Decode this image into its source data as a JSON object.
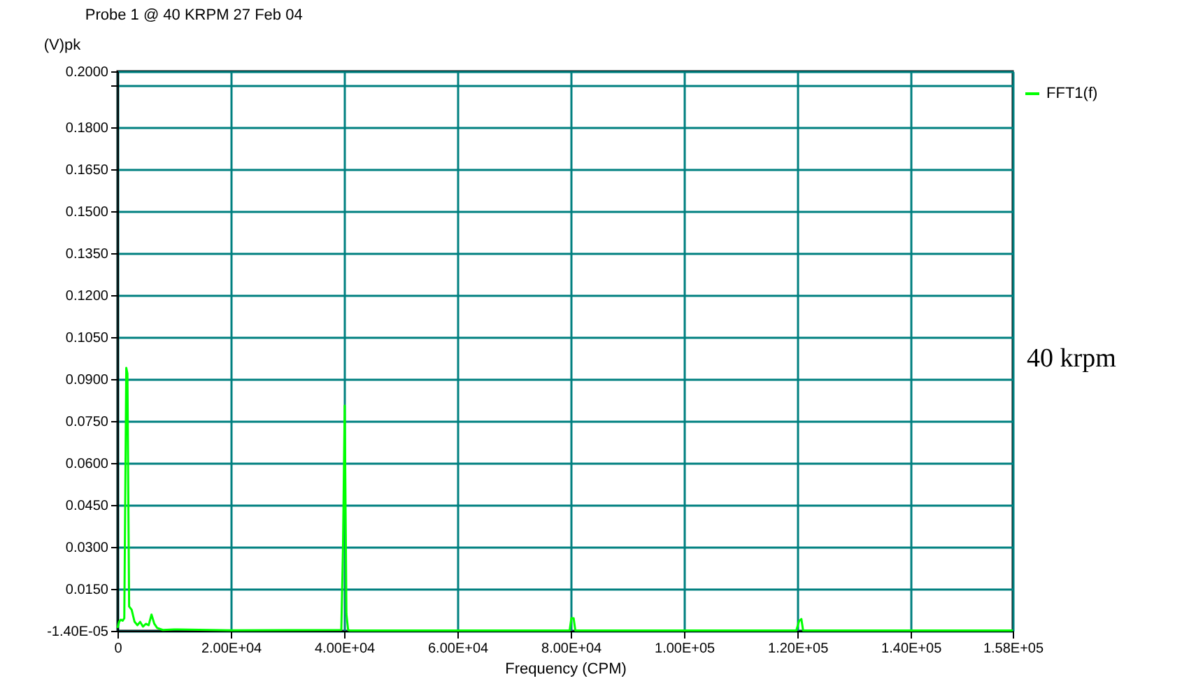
{
  "chart_data": {
    "type": "line",
    "title": "Probe 1 @ 40 KRPM 27 Feb 04",
    "xlabel": "Frequency (CPM)",
    "ylabel": "(V)pk",
    "series": [
      {
        "name": "FFT1(f)",
        "color": "#00ff00",
        "x": [
          0,
          300,
          600,
          900,
          1200,
          1550,
          1750,
          2050,
          2500,
          3000,
          3500,
          4000,
          4500,
          5000,
          5500,
          6000,
          6500,
          7000,
          8000,
          10000,
          20000,
          39500,
          39800,
          40100,
          40400,
          40700,
          41000,
          60000,
          79800,
          80100,
          80500,
          80800,
          100000,
          119800,
          120300,
          120700,
          121000,
          158000
        ],
        "values": [
          0.001,
          0.0033,
          0.004,
          0.0036,
          0.0045,
          0.094,
          0.092,
          0.0087,
          0.0075,
          0.0033,
          0.002,
          0.0032,
          0.0015,
          0.0025,
          0.002,
          0.0058,
          0.0025,
          0.001,
          0.0003,
          0.0005,
          0.0002,
          0.0003,
          0.03,
          0.0805,
          0.006,
          0.0003,
          0.0001,
          0.0001,
          0.0001,
          0.0045,
          0.0045,
          0.0001,
          0.0001,
          0.0001,
          0.0035,
          0.0042,
          0.0001,
          0.0001
        ]
      }
    ],
    "xlim": [
      0,
      158000
    ],
    "xticks": [
      0,
      {
        "value": 20000,
        "label": "2.00E+04"
      },
      {
        "value": 40000,
        "label": "4.00E+04"
      },
      {
        "value": 60000,
        "label": "6.00E+04"
      },
      {
        "value": 80000,
        "label": "8.00E+04"
      },
      {
        "value": 100000,
        "label": "1.00E+05"
      },
      {
        "value": 120000,
        "label": "1.20E+05"
      },
      {
        "value": 140000,
        "label": "1.40E+05"
      },
      {
        "value": 158000,
        "label": "1.58E+05"
      }
    ],
    "ylim": [
      -1.4e-05,
      0.2
    ],
    "yticks": [
      {
        "value": -1.4e-05,
        "label": "-1.40E-05"
      },
      {
        "value": 0.015,
        "label": "0.0150"
      },
      {
        "value": 0.03,
        "label": "0.0300"
      },
      {
        "value": 0.045,
        "label": "0.0450"
      },
      {
        "value": 0.06,
        "label": "0.0600"
      },
      {
        "value": 0.075,
        "label": "0.0750"
      },
      {
        "value": 0.09,
        "label": "0.0900"
      },
      {
        "value": 0.105,
        "label": "0.1050"
      },
      {
        "value": 0.12,
        "label": "0.1200"
      },
      {
        "value": 0.135,
        "label": "0.1350"
      },
      {
        "value": 0.15,
        "label": "0.1500"
      },
      {
        "value": 0.165,
        "label": "0.1650"
      },
      {
        "value": 0.18,
        "label": "0.1800"
      },
      {
        "value": 0.195,
        "label": null
      },
      {
        "value": 0.2,
        "label": "0.2000"
      }
    ],
    "grid": true,
    "legend": "top right",
    "annotations": [
      "40 krpm"
    ]
  }
}
